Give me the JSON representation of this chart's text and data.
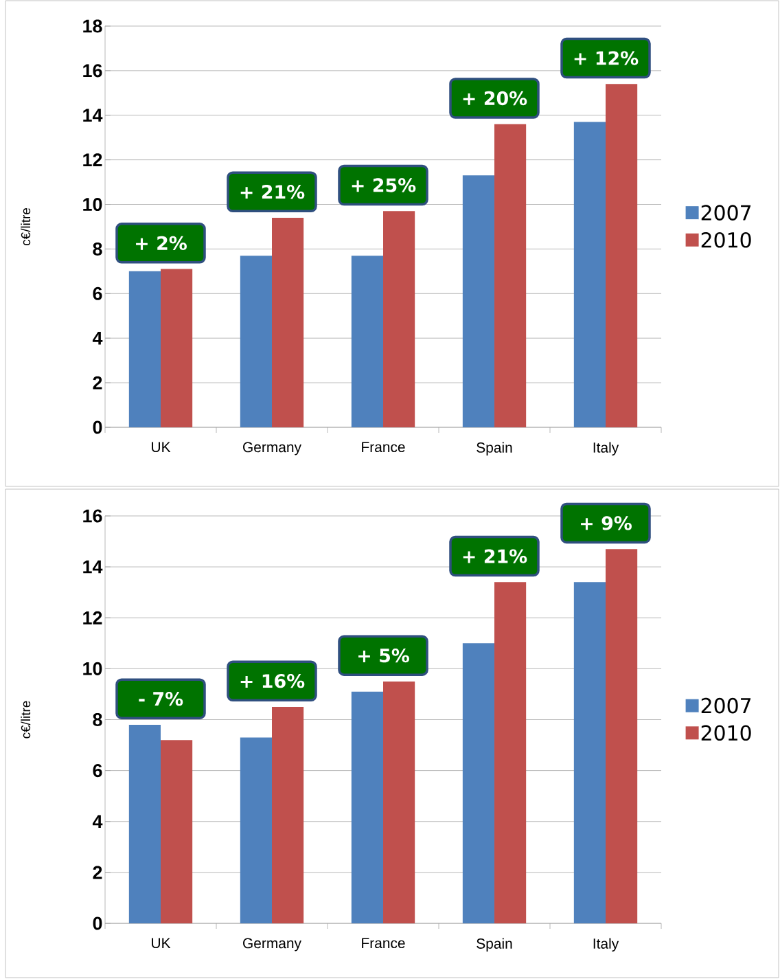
{
  "chart_data": [
    {
      "type": "bar",
      "categories": [
        "UK",
        "Germany",
        "France",
        "Spain",
        "Italy"
      ],
      "series": [
        {
          "name": "2007",
          "color": "#4f81bd",
          "values": [
            7.0,
            7.7,
            7.7,
            11.3,
            13.7
          ]
        },
        {
          "name": "2010",
          "color": "#c0504d",
          "values": [
            7.1,
            9.4,
            9.7,
            13.6,
            15.4
          ]
        }
      ],
      "ylabel": "c€/litre",
      "ylim": [
        0,
        18
      ],
      "yticks": [
        0,
        2,
        4,
        6,
        8,
        10,
        12,
        14,
        16,
        18
      ],
      "grid": "y",
      "legend": "right",
      "annotations": [
        "+ 2%",
        "+ 21%",
        "+ 25%",
        "+ 20%",
        "+ 12%"
      ]
    },
    {
      "type": "bar",
      "categories": [
        "UK",
        "Germany",
        "France",
        "Spain",
        "Italy"
      ],
      "series": [
        {
          "name": "2007",
          "color": "#4f81bd",
          "values": [
            7.8,
            7.3,
            9.1,
            11.0,
            13.4
          ]
        },
        {
          "name": "2010",
          "color": "#c0504d",
          "values": [
            7.2,
            8.5,
            9.5,
            13.4,
            14.7
          ]
        }
      ],
      "ylabel": "c€/litre",
      "ylim": [
        0,
        16
      ],
      "yticks": [
        0,
        2,
        4,
        6,
        8,
        10,
        12,
        14,
        16
      ],
      "grid": "y",
      "legend": "right",
      "annotations": [
        "- 7%",
        "+ 16%",
        "+ 5%",
        "+ 21%",
        "+ 9%"
      ]
    }
  ]
}
